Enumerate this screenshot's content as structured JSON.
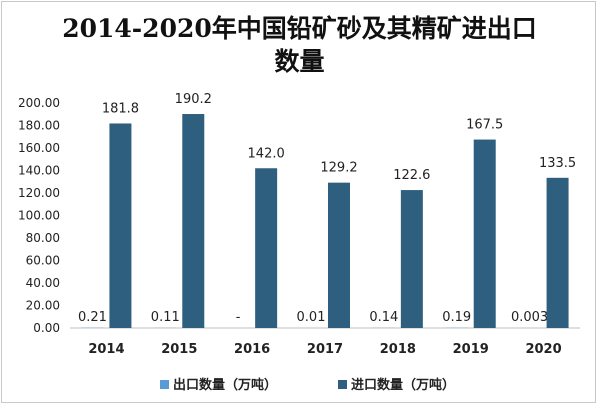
{
  "chart_data": {
    "type": "bar",
    "title_lines": [
      "2014-2020年中国铅矿砂及其精矿进出口",
      "数量"
    ],
    "categories": [
      "2014",
      "2015",
      "2016",
      "2017",
      "2018",
      "2019",
      "2020"
    ],
    "ylim": [
      0,
      200
    ],
    "yticks": [
      "0.00",
      "20.00",
      "40.00",
      "60.00",
      "80.00",
      "100.00",
      "120.00",
      "140.00",
      "160.00",
      "180.00",
      "200.00"
    ],
    "series": [
      {
        "name": "出口数量（万吨）",
        "color": "#5b9bd5",
        "values": [
          0.21,
          0.11,
          0,
          0.01,
          0.14,
          0.19,
          0.003
        ],
        "labels": [
          "0.21",
          "0.11",
          "-",
          "0.01",
          "0.14",
          "0.19",
          "0.003"
        ]
      },
      {
        "name": "进口数量（万吨）",
        "color": "#2e5f7f",
        "values": [
          181.8,
          190.2,
          142.0,
          129.2,
          122.6,
          167.5,
          133.5
        ],
        "labels": [
          "181.8",
          "190.2",
          "142.0",
          "129.2",
          "122.6",
          "167.5",
          "133.5"
        ]
      }
    ],
    "legend_position": "bottom",
    "grid": false
  }
}
